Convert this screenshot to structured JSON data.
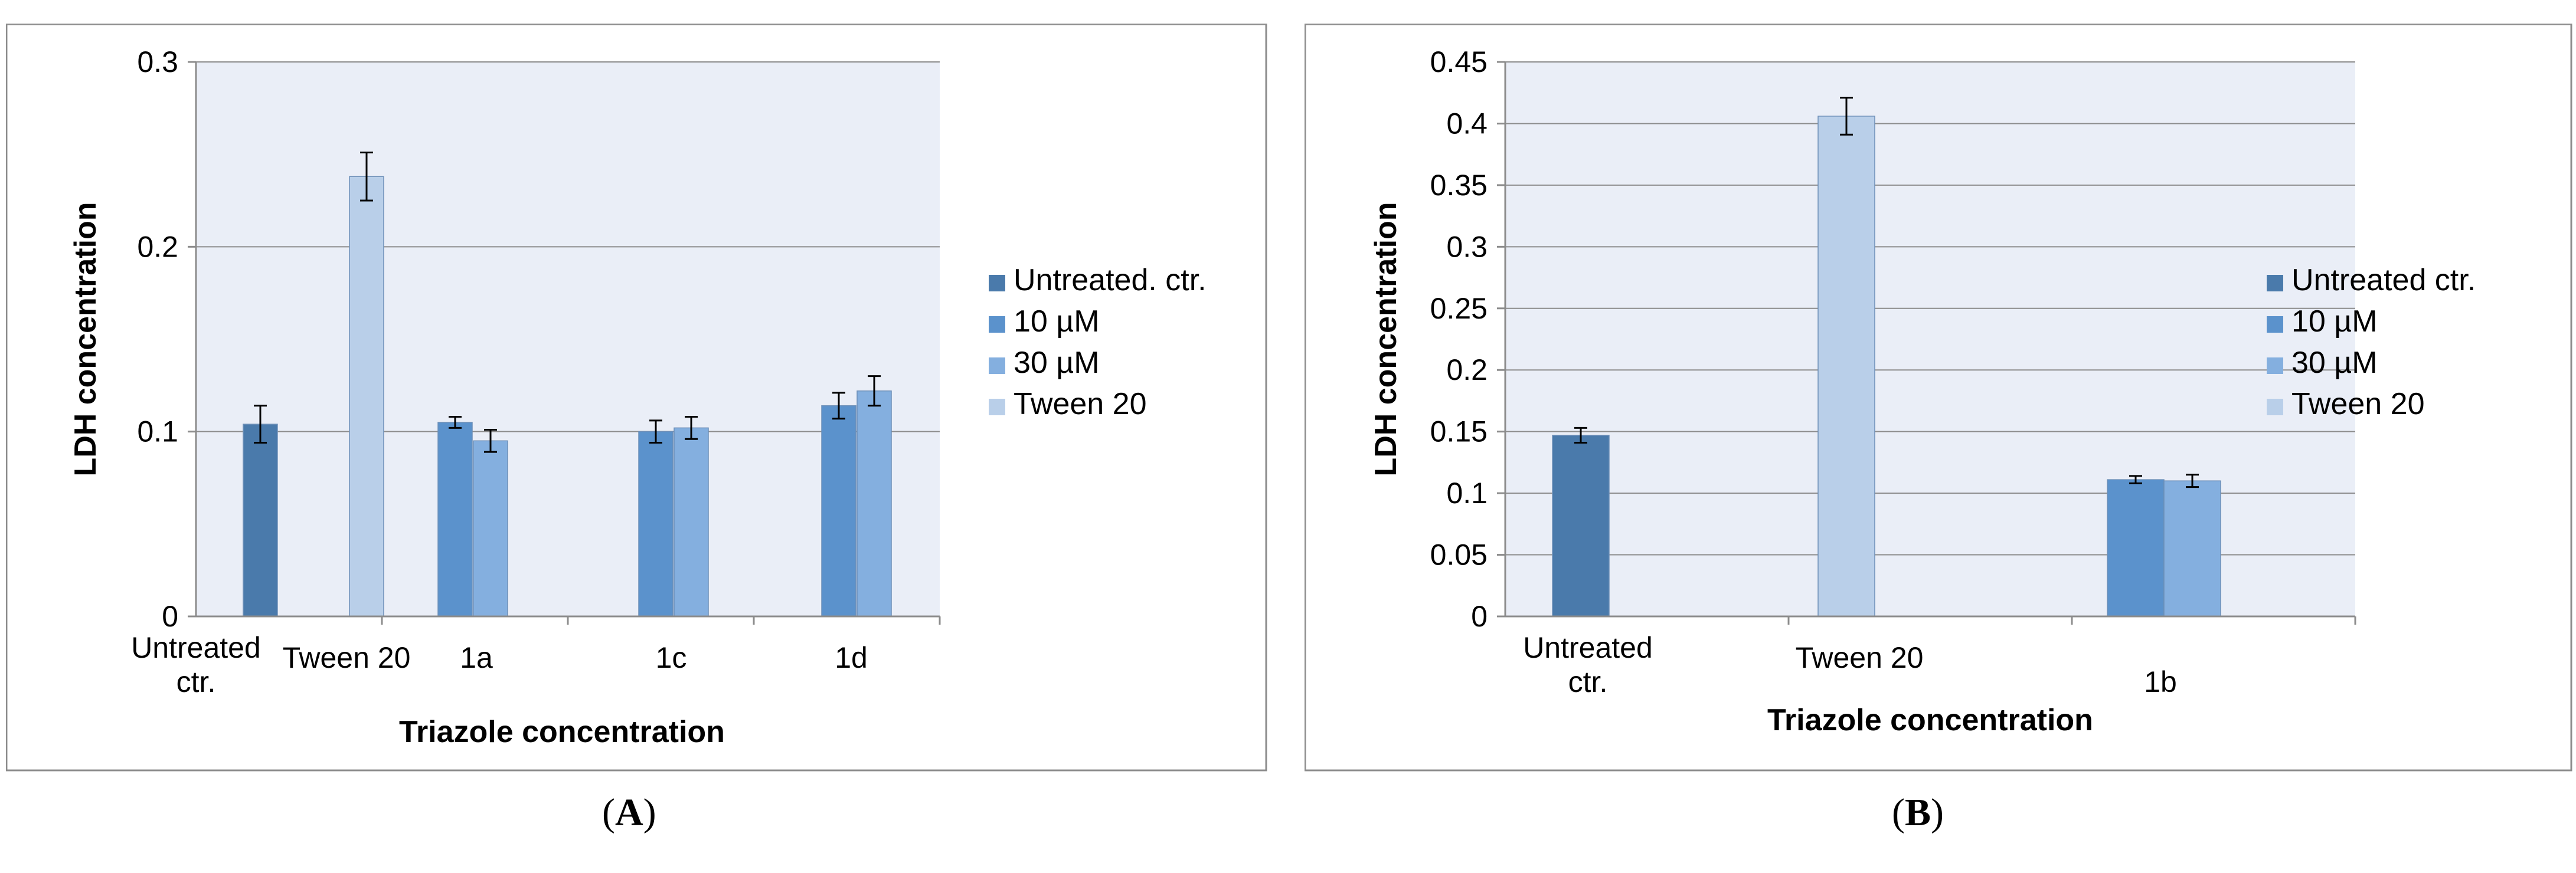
{
  "figure": {
    "panel_labels": [
      {
        "open": "(",
        "letter": "A",
        "close": ")"
      },
      {
        "open": "(",
        "letter": "B",
        "close": ")"
      }
    ]
  },
  "chart_data": [
    {
      "type": "bar",
      "panel": "A",
      "ylabel": "LDH concentration",
      "xlabel": "Triazole concentration",
      "ylim": [
        0,
        0.3
      ],
      "yticks": [
        "0",
        "0.1",
        "0.2",
        "0.3"
      ],
      "ytick_values": [
        0,
        0.1,
        0.2,
        0.3
      ],
      "grid": true,
      "legend_position": "right",
      "categories": [
        [
          "Untreated",
          "ctr."
        ],
        [
          "Tween 20"
        ],
        [
          "1a"
        ],
        [
          "1c"
        ],
        [
          "1d"
        ]
      ],
      "series": [
        {
          "name": "Untreated. ctr.",
          "color": "#4a7aab",
          "values": [
            0.104,
            null,
            null,
            null,
            null
          ],
          "errors": [
            0.01,
            null,
            null,
            null,
            null
          ]
        },
        {
          "name": "10 µM",
          "color": "#5b92cc",
          "values": [
            null,
            null,
            0.105,
            0.1,
            0.114
          ],
          "errors": [
            null,
            null,
            0.003,
            0.006,
            0.007
          ]
        },
        {
          "name": "30 µM",
          "color": "#84afdf",
          "values": [
            null,
            null,
            0.095,
            0.102,
            0.122
          ],
          "errors": [
            null,
            null,
            0.006,
            0.006,
            0.008
          ]
        },
        {
          "name": "Tween 20",
          "color": "#b9cfe9",
          "values": [
            null,
            0.238,
            null,
            null,
            null
          ],
          "errors": [
            null,
            0.013,
            null,
            null,
            null
          ]
        }
      ]
    },
    {
      "type": "bar",
      "panel": "B",
      "ylabel": "LDH concentration",
      "xlabel": "Triazole concentration",
      "ylim": [
        0,
        0.45
      ],
      "yticks": [
        "0",
        "0.05",
        "0.1",
        "0.15",
        "0.2",
        "0.25",
        "0.3",
        "0.35",
        "0.4",
        "0.45"
      ],
      "ytick_values": [
        0,
        0.05,
        0.1,
        0.15,
        0.2,
        0.25,
        0.3,
        0.35,
        0.4,
        0.45
      ],
      "grid": true,
      "legend_position": "right",
      "categories": [
        [
          "Untreated",
          "ctr."
        ],
        [
          "Tween 20"
        ],
        [
          "1b"
        ]
      ],
      "series": [
        {
          "name": "Untreated ctr.",
          "color": "#4a7aab",
          "values": [
            0.147,
            null,
            null
          ],
          "errors": [
            0.006,
            null,
            null
          ]
        },
        {
          "name": "10 µM",
          "color": "#5b92cc",
          "values": [
            null,
            null,
            0.111
          ],
          "errors": [
            null,
            null,
            0.003
          ]
        },
        {
          "name": "30 µM",
          "color": "#84afdf",
          "values": [
            null,
            null,
            0.11
          ],
          "errors": [
            null,
            null,
            0.005
          ]
        },
        {
          "name": "Tween 20",
          "color": "#b9cfe9",
          "values": [
            null,
            0.406,
            null
          ],
          "errors": [
            null,
            0.015,
            null
          ]
        }
      ]
    }
  ]
}
